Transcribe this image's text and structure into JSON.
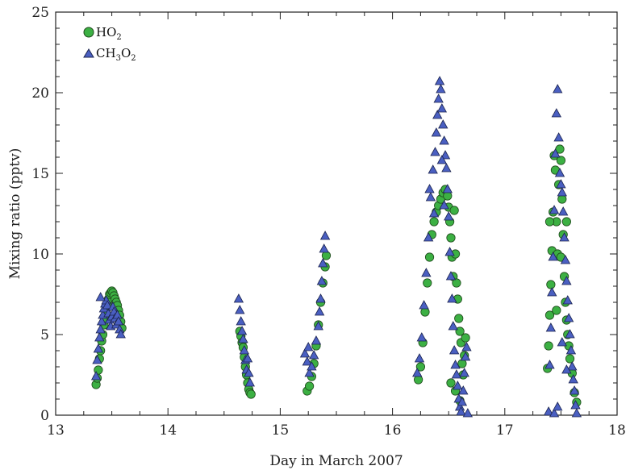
{
  "chart_data": {
    "type": "scatter",
    "title": "",
    "xlabel": "Day in March 2007",
    "ylabel": "Mixing ratio (pptv)",
    "xlim": [
      13,
      18
    ],
    "ylim": [
      0,
      25
    ],
    "xticks": [
      "13",
      "14",
      "15",
      "16",
      "17",
      "18"
    ],
    "yticks": [
      "0",
      "5",
      "10",
      "15",
      "20",
      "25"
    ],
    "grid": false,
    "legend_position": "top-left",
    "series": [
      {
        "name": "HO₂",
        "legend_main": "HO",
        "legend_sub": "2",
        "marker": "circle",
        "color": "#3cb043",
        "points": [
          [
            13.36,
            1.9
          ],
          [
            13.37,
            2.3
          ],
          [
            13.38,
            2.8
          ],
          [
            13.39,
            3.5
          ],
          [
            13.4,
            4.0
          ],
          [
            13.41,
            4.6
          ],
          [
            13.42,
            5.0
          ],
          [
            13.43,
            5.6
          ],
          [
            13.44,
            6.0
          ],
          [
            13.45,
            6.4
          ],
          [
            13.46,
            6.9
          ],
          [
            13.47,
            7.2
          ],
          [
            13.48,
            7.5
          ],
          [
            13.49,
            7.6
          ],
          [
            13.5,
            7.7
          ],
          [
            13.51,
            7.6
          ],
          [
            13.52,
            7.4
          ],
          [
            13.53,
            7.2
          ],
          [
            13.54,
            7.0
          ],
          [
            13.55,
            6.8
          ],
          [
            13.56,
            6.5
          ],
          [
            13.57,
            6.2
          ],
          [
            13.58,
            5.8
          ],
          [
            13.59,
            5.4
          ],
          [
            14.64,
            5.2
          ],
          [
            14.65,
            4.9
          ],
          [
            14.66,
            4.5
          ],
          [
            14.67,
            4.2
          ],
          [
            14.68,
            3.6
          ],
          [
            14.69,
            3.0
          ],
          [
            14.7,
            2.5
          ],
          [
            14.71,
            2.0
          ],
          [
            14.72,
            1.6
          ],
          [
            14.73,
            1.4
          ],
          [
            14.74,
            1.3
          ],
          [
            15.24,
            1.5
          ],
          [
            15.26,
            1.8
          ],
          [
            15.28,
            2.4
          ],
          [
            15.3,
            3.2
          ],
          [
            15.32,
            4.3
          ],
          [
            15.34,
            5.6
          ],
          [
            15.36,
            7.0
          ],
          [
            15.38,
            8.2
          ],
          [
            15.4,
            9.2
          ],
          [
            15.41,
            9.9
          ],
          [
            16.23,
            2.2
          ],
          [
            16.25,
            3.0
          ],
          [
            16.27,
            4.5
          ],
          [
            16.29,
            6.4
          ],
          [
            16.31,
            8.2
          ],
          [
            16.33,
            9.8
          ],
          [
            16.35,
            11.2
          ],
          [
            16.37,
            12.0
          ],
          [
            16.39,
            12.6
          ],
          [
            16.41,
            13.0
          ],
          [
            16.43,
            13.4
          ],
          [
            16.45,
            13.8
          ],
          [
            16.47,
            14.0
          ],
          [
            16.49,
            13.6
          ],
          [
            16.5,
            12.9
          ],
          [
            16.51,
            12.0
          ],
          [
            16.52,
            11.0
          ],
          [
            16.53,
            9.8
          ],
          [
            16.54,
            8.6
          ],
          [
            16.55,
            12.7
          ],
          [
            16.56,
            10.0
          ],
          [
            16.57,
            8.2
          ],
          [
            16.58,
            7.2
          ],
          [
            16.59,
            6.0
          ],
          [
            16.6,
            5.2
          ],
          [
            16.61,
            4.5
          ],
          [
            16.62,
            3.2
          ],
          [
            16.63,
            2.5
          ],
          [
            16.64,
            3.7
          ],
          [
            16.65,
            4.8
          ],
          [
            16.52,
            2.0
          ],
          [
            16.56,
            1.5
          ],
          [
            16.6,
            0.9
          ],
          [
            17.38,
            2.9
          ],
          [
            17.39,
            4.3
          ],
          [
            17.4,
            6.2
          ],
          [
            17.41,
            8.1
          ],
          [
            17.42,
            10.2
          ],
          [
            17.43,
            12.6
          ],
          [
            17.44,
            16.1
          ],
          [
            17.45,
            15.2
          ],
          [
            17.46,
            12.0
          ],
          [
            17.47,
            10.0
          ],
          [
            17.48,
            14.3
          ],
          [
            17.49,
            16.5
          ],
          [
            17.5,
            15.8
          ],
          [
            17.51,
            13.4
          ],
          [
            17.52,
            11.2
          ],
          [
            17.53,
            8.6
          ],
          [
            17.54,
            7.0
          ],
          [
            17.55,
            5.9
          ],
          [
            17.56,
            5.0
          ],
          [
            17.57,
            4.3
          ],
          [
            17.58,
            3.5
          ],
          [
            17.6,
            2.6
          ],
          [
            17.62,
            1.4
          ],
          [
            17.64,
            0.8
          ],
          [
            17.4,
            12.0
          ],
          [
            17.46,
            6.5
          ],
          [
            17.5,
            9.8
          ],
          [
            17.55,
            12.0
          ]
        ]
      },
      {
        "name": "CH₃O₂",
        "legend_parts": [
          [
            "CH",
            ""
          ],
          [
            "3",
            "sub"
          ],
          [
            "O",
            ""
          ],
          [
            "2",
            "sub"
          ]
        ],
        "marker": "triangle",
        "color": "#4a5fc1",
        "points": [
          [
            13.36,
            2.4
          ],
          [
            13.37,
            3.4
          ],
          [
            13.38,
            4.1
          ],
          [
            13.39,
            4.8
          ],
          [
            13.4,
            5.3
          ],
          [
            13.41,
            5.8
          ],
          [
            13.42,
            6.2
          ],
          [
            13.43,
            6.6
          ],
          [
            13.44,
            6.9
          ],
          [
            13.45,
            7.1
          ],
          [
            13.46,
            6.8
          ],
          [
            13.47,
            6.3
          ],
          [
            13.48,
            5.9
          ],
          [
            13.49,
            5.5
          ],
          [
            13.5,
            6.1
          ],
          [
            13.51,
            6.7
          ],
          [
            13.52,
            6.4
          ],
          [
            13.53,
            6.0
          ],
          [
            13.54,
            5.6
          ],
          [
            13.55,
            6.2
          ],
          [
            13.56,
            5.8
          ],
          [
            13.57,
            5.3
          ],
          [
            13.58,
            5.0
          ],
          [
            13.4,
            7.3
          ],
          [
            14.63,
            7.2
          ],
          [
            14.64,
            6.5
          ],
          [
            14.65,
            5.8
          ],
          [
            14.66,
            5.2
          ],
          [
            14.67,
            4.7
          ],
          [
            14.68,
            4.0
          ],
          [
            14.69,
            3.4
          ],
          [
            14.7,
            2.8
          ],
          [
            14.71,
            3.5
          ],
          [
            14.72,
            2.6
          ],
          [
            14.73,
            2.0
          ],
          [
            15.22,
            3.8
          ],
          [
            15.24,
            3.3
          ],
          [
            15.26,
            2.6
          ],
          [
            15.28,
            3.0
          ],
          [
            15.3,
            3.7
          ],
          [
            15.32,
            4.6
          ],
          [
            15.34,
            5.5
          ],
          [
            15.35,
            6.4
          ],
          [
            15.36,
            7.2
          ],
          [
            15.37,
            8.3
          ],
          [
            15.38,
            9.4
          ],
          [
            15.39,
            10.3
          ],
          [
            15.4,
            11.1
          ],
          [
            15.25,
            4.2
          ],
          [
            16.22,
            2.6
          ],
          [
            16.24,
            3.5
          ],
          [
            16.26,
            4.8
          ],
          [
            16.28,
            6.8
          ],
          [
            16.3,
            8.8
          ],
          [
            16.32,
            11.0
          ],
          [
            16.34,
            13.5
          ],
          [
            16.36,
            15.2
          ],
          [
            16.38,
            16.3
          ],
          [
            16.39,
            17.5
          ],
          [
            16.4,
            18.6
          ],
          [
            16.41,
            19.6
          ],
          [
            16.42,
            20.7
          ],
          [
            16.43,
            20.2
          ],
          [
            16.44,
            19.0
          ],
          [
            16.45,
            18.0
          ],
          [
            16.46,
            17.0
          ],
          [
            16.47,
            16.1
          ],
          [
            16.48,
            15.3
          ],
          [
            16.49,
            14.0
          ],
          [
            16.5,
            12.3
          ],
          [
            16.51,
            10.1
          ],
          [
            16.52,
            8.6
          ],
          [
            16.53,
            7.2
          ],
          [
            16.54,
            5.5
          ],
          [
            16.55,
            4.0
          ],
          [
            16.56,
            3.1
          ],
          [
            16.57,
            2.5
          ],
          [
            16.58,
            1.8
          ],
          [
            16.59,
            1.0
          ],
          [
            16.6,
            0.5
          ],
          [
            16.61,
            0.2
          ],
          [
            16.62,
            0.8
          ],
          [
            16.63,
            1.5
          ],
          [
            16.64,
            2.6
          ],
          [
            16.65,
            3.6
          ],
          [
            16.66,
            4.2
          ],
          [
            16.67,
            0.1
          ],
          [
            16.33,
            14.0
          ],
          [
            16.37,
            12.5
          ],
          [
            16.44,
            15.8
          ],
          [
            16.46,
            13.0
          ],
          [
            17.39,
            0.2
          ],
          [
            17.4,
            3.1
          ],
          [
            17.41,
            5.4
          ],
          [
            17.42,
            7.6
          ],
          [
            17.43,
            9.8
          ],
          [
            17.44,
            12.7
          ],
          [
            17.45,
            16.2
          ],
          [
            17.46,
            18.7
          ],
          [
            17.47,
            20.2
          ],
          [
            17.48,
            17.2
          ],
          [
            17.49,
            15.0
          ],
          [
            17.5,
            14.3
          ],
          [
            17.51,
            13.8
          ],
          [
            17.52,
            12.6
          ],
          [
            17.53,
            11.0
          ],
          [
            17.54,
            9.6
          ],
          [
            17.55,
            8.3
          ],
          [
            17.56,
            7.1
          ],
          [
            17.57,
            6.0
          ],
          [
            17.58,
            5.0
          ],
          [
            17.59,
            4.0
          ],
          [
            17.6,
            3.0
          ],
          [
            17.61,
            2.2
          ],
          [
            17.62,
            1.5
          ],
          [
            17.63,
            0.6
          ],
          [
            17.64,
            0.1
          ],
          [
            17.44,
            0.1
          ],
          [
            17.47,
            0.5
          ],
          [
            17.51,
            4.5
          ],
          [
            17.55,
            2.8
          ]
        ]
      }
    ]
  }
}
